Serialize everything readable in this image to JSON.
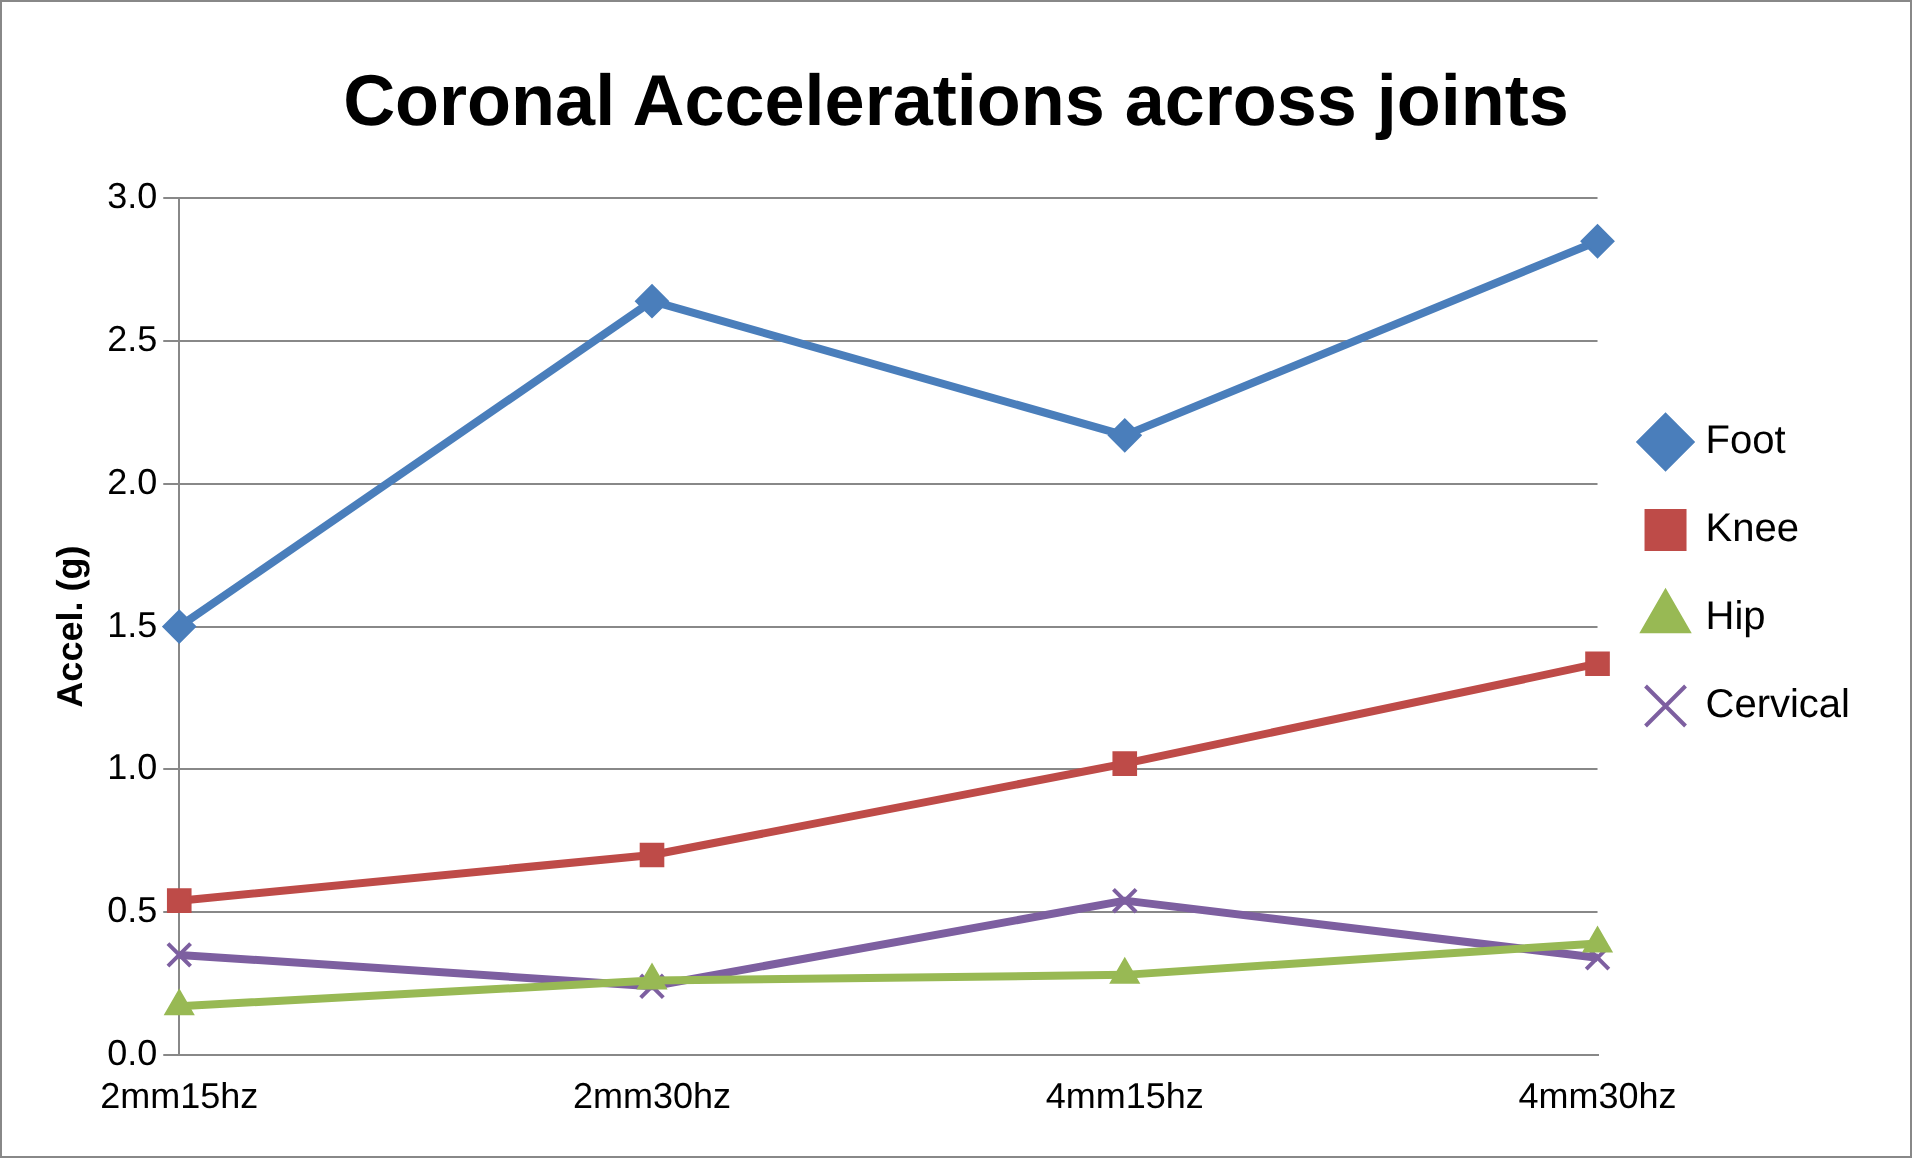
{
  "chart_data": {
    "type": "line",
    "title": "Coronal Accelerations across joints",
    "ylabel": "Accel. (g)",
    "categories": [
      "2mm15hz",
      "2mm30hz",
      "4mm15hz",
      "4mm30hz"
    ],
    "series": [
      {
        "name": "Foot",
        "color": "#4a7ebb",
        "marker": "diamond",
        "values": [
          1.5,
          2.64,
          2.17,
          2.85
        ]
      },
      {
        "name": "Knee",
        "color": "#be4b48",
        "marker": "square",
        "values": [
          0.54,
          0.7,
          1.02,
          1.37
        ]
      },
      {
        "name": "Hip",
        "color": "#98b954",
        "marker": "triangle",
        "values": [
          0.17,
          0.26,
          0.28,
          0.39
        ]
      },
      {
        "name": "Cervical",
        "color": "#7d5fa0",
        "marker": "cross",
        "values": [
          0.35,
          0.24,
          0.54,
          0.34
        ]
      }
    ],
    "ylim": [
      0,
      3
    ],
    "yticks": [
      {
        "value": 0,
        "label": "0.0"
      },
      {
        "value": 0.5,
        "label": "0.5"
      },
      {
        "value": 1,
        "label": "1.0"
      },
      {
        "value": 1.5,
        "label": "1.5"
      },
      {
        "value": 2,
        "label": "2.0"
      },
      {
        "value": 2.5,
        "label": "2.5"
      },
      {
        "value": 3,
        "label": "3.0"
      }
    ],
    "grid": "y",
    "legend": "right",
    "line_style": "solid"
  }
}
